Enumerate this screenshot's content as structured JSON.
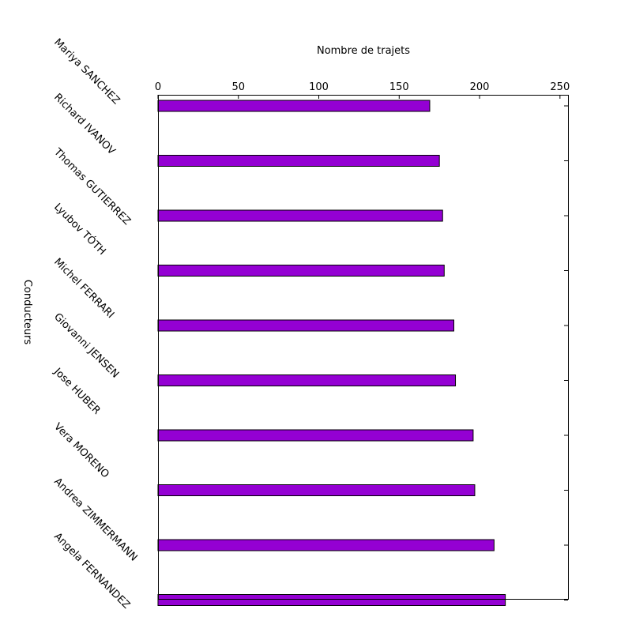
{
  "chart_data": {
    "type": "bar",
    "orientation": "horizontal",
    "title": "",
    "xlabel": "Nombre de trajets",
    "ylabel": "Conducteurs",
    "xlim": [
      0,
      255
    ],
    "x_ticks": [
      0,
      50,
      100,
      150,
      200,
      250
    ],
    "x_axis_position": "top",
    "grid": false,
    "legend": "none",
    "bar_color": "#9400d3",
    "categories": [
      "Mariya SANCHEZ",
      "Richard IVANOV",
      "Thomas GUTIERREZ",
      "Lyubov TÓTH",
      "Michel FERRARI",
      "Giovanni JENSEN",
      "Jose HUBER",
      "Vera MORENO",
      "Andrea ZIMMERMANN",
      "Angela FERNANDEZ"
    ],
    "values": [
      169,
      175,
      177,
      178,
      184,
      185,
      196,
      197,
      209,
      216
    ]
  }
}
